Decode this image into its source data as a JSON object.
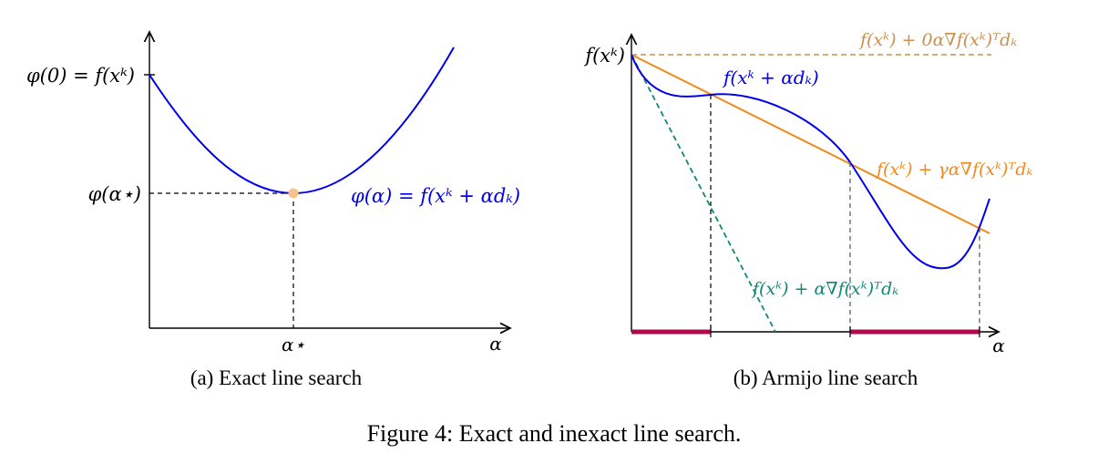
{
  "panel_a": {
    "tick_top": "φ(0) = f(xᵏ)",
    "tick_mid": "φ(α⋆)",
    "curve_label": "φ(α) = f(xᵏ + αdₖ)",
    "x_tick": "α⋆",
    "x_axis": "α",
    "caption": "(a) Exact line search",
    "colors": {
      "curve": "#0000ee",
      "point": "#f4c48a"
    }
  },
  "panel_b": {
    "y_tick": "f(xᵏ)",
    "line_zero": "f(xᵏ) + 0α∇f(xᵏ)ᵀdₖ",
    "curve_label": "f(xᵏ + αdₖ)",
    "line_gamma": "f(xᵏ) + γα∇f(xᵏ)ᵀdₖ",
    "line_full": "f(xᵏ) + α∇f(xᵏ)ᵀdₖ",
    "x_axis": "α",
    "caption": "(b) Armijo line search",
    "colors": {
      "curve": "#0000ee",
      "zero": "#c8914e",
      "gamma": "#f08a1c",
      "full": "#118877",
      "interval": "#b0094e"
    }
  },
  "figure_caption": "Figure 4: Exact and inexact line search."
}
